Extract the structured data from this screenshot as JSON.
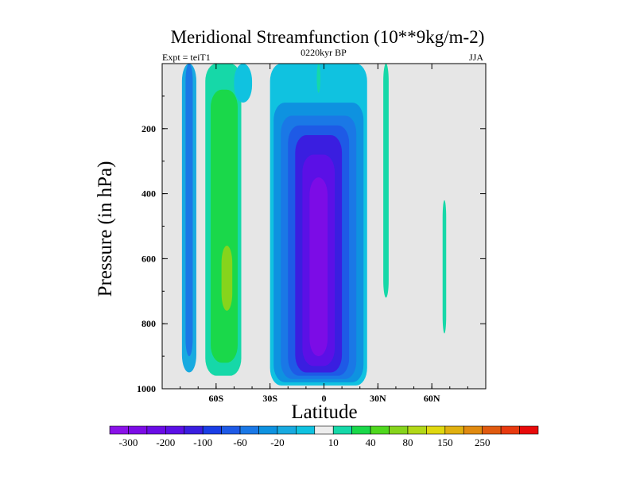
{
  "chart_data": {
    "type": "heatmap",
    "title": "Meridional Streamfunction (10**9kg/m-2)",
    "subtitle_left": "Expt = teiT1",
    "subtitle_center": "0220kyr BP",
    "subtitle_right": "JJA",
    "xlabel": "Latitude",
    "ylabel": "Pressure (in hPa)",
    "xlim": [
      -90,
      90
    ],
    "ylim": [
      0,
      1000
    ],
    "y_inverted": true,
    "x_ticks": [
      {
        "value": -60,
        "label": "60S"
      },
      {
        "value": -30,
        "label": "30S"
      },
      {
        "value": 0,
        "label": "0"
      },
      {
        "value": 30,
        "label": "30N"
      },
      {
        "value": 60,
        "label": "60N"
      }
    ],
    "y_ticks": [
      {
        "value": 200,
        "label": "200"
      },
      {
        "value": 400,
        "label": "400"
      },
      {
        "value": 600,
        "label": "600"
      },
      {
        "value": 800,
        "label": "800"
      },
      {
        "value": 1000,
        "label": "1000"
      }
    ],
    "background_color": "#e6e6e6",
    "colorbar": {
      "colors": [
        "#8a12e8",
        "#7c0ce6",
        "#6a0ce6",
        "#5b10e6",
        "#3a1ee0",
        "#1a3ee6",
        "#1e5ae6",
        "#1a78e6",
        "#0e92e0",
        "#18aae0",
        "#10c2e0",
        "#ededed",
        "#16d8a8",
        "#1ad84a",
        "#4fd81e",
        "#86d41c",
        "#b2d818",
        "#e0d810",
        "#e0b010",
        "#e08a10",
        "#e05a10",
        "#e83a10",
        "#e80a0a"
      ],
      "labels": [
        {
          "label": "-300",
          "after_box": 1
        },
        {
          "label": "-200",
          "after_box": 3
        },
        {
          "label": "-100",
          "after_box": 5
        },
        {
          "label": "-60",
          "after_box": 7
        },
        {
          "label": "-20",
          "after_box": 9
        },
        {
          "label": "10",
          "after_box": 12
        },
        {
          "label": "40",
          "after_box": 14
        },
        {
          "label": "80",
          "after_box": 16
        },
        {
          "label": "150",
          "after_box": 18
        },
        {
          "label": "250",
          "after_box": 20
        }
      ]
    },
    "contour_regions": [
      {
        "name": "south-polar-teal",
        "level": "-20",
        "color": "#18aae0",
        "lat": [
          -79,
          -71
        ],
        "p": [
          0,
          950
        ]
      },
      {
        "name": "south-polar-blue",
        "level": "-60",
        "color": "#1a78e6",
        "lat": [
          -77,
          -73
        ],
        "p": [
          0,
          900
        ]
      },
      {
        "name": "south-green-band",
        "level": "40",
        "color": "#16d8a8",
        "lat": [
          -66,
          -46
        ],
        "p": [
          0,
          960
        ]
      },
      {
        "name": "south-green-core",
        "level": "40",
        "color": "#1ad84a",
        "lat": [
          -63,
          -48
        ],
        "p": [
          80,
          920
        ]
      },
      {
        "name": "south-lime-core",
        "level": "80",
        "color": "#86d41c",
        "lat": [
          -57,
          -51
        ],
        "p": [
          560,
          760
        ]
      },
      {
        "name": "upper-cyan-band",
        "level": "-20",
        "color": "#10c2e0",
        "lat": [
          -50,
          -40
        ],
        "p": [
          0,
          120
        ]
      },
      {
        "name": "tropical-outer",
        "level": "-20",
        "color": "#10c2e0",
        "lat": [
          -30,
          24
        ],
        "p": [
          0,
          990
        ]
      },
      {
        "name": "tropical-ring-2",
        "level": "-60",
        "color": "#0e92e0",
        "lat": [
          -28,
          22
        ],
        "p": [
          120,
          980
        ]
      },
      {
        "name": "tropical-ring-3",
        "level": "-100",
        "color": "#1a78e6",
        "lat": [
          -24,
          18
        ],
        "p": [
          160,
          970
        ]
      },
      {
        "name": "tropical-ring-4",
        "level": "-100",
        "color": "#1e5ae6",
        "lat": [
          -20,
          14
        ],
        "p": [
          190,
          960
        ]
      },
      {
        "name": "tropical-ring-5",
        "level": "-200",
        "color": "#3a1ee0",
        "lat": [
          -16,
          10
        ],
        "p": [
          220,
          950
        ]
      },
      {
        "name": "tropical-ring-6",
        "level": "-200",
        "color": "#5b10e6",
        "lat": [
          -12,
          6
        ],
        "p": [
          280,
          930
        ]
      },
      {
        "name": "tropical-core",
        "level": "-300",
        "color": "#7c0ce6",
        "lat": [
          -8,
          2
        ],
        "p": [
          350,
          900
        ]
      },
      {
        "name": "north-sub-streak",
        "level": "10",
        "color": "#16d8a8",
        "lat": [
          33,
          36
        ],
        "p": [
          0,
          720
        ]
      },
      {
        "name": "north-mid-streak",
        "level": "10",
        "color": "#16d8a8",
        "lat": [
          66,
          68
        ],
        "p": [
          420,
          830
        ]
      },
      {
        "name": "north-upper-streak",
        "level": "10",
        "color": "#16d8a8",
        "lat": [
          -4,
          -2
        ],
        "p": [
          0,
          90
        ]
      }
    ]
  }
}
